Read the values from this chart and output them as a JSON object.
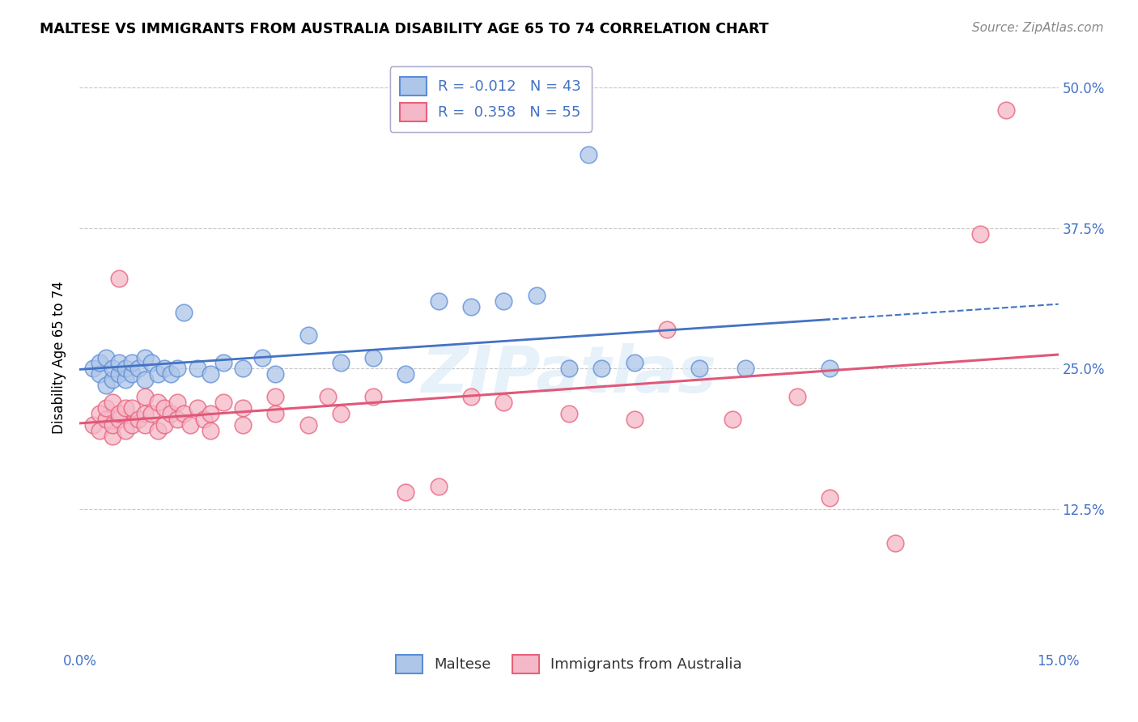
{
  "title": "MALTESE VS IMMIGRANTS FROM AUSTRALIA DISABILITY AGE 65 TO 74 CORRELATION CHART",
  "source": "Source: ZipAtlas.com",
  "ylabel": "Disability Age 65 to 74",
  "xlim": [
    0.0,
    15.0
  ],
  "ylim": [
    0.0,
    52.0
  ],
  "ytick_vals": [
    12.5,
    25.0,
    37.5,
    50.0
  ],
  "ytick_labels": [
    "12.5%",
    "25.0%",
    "37.5%",
    "50.0%"
  ],
  "xtick_vals": [
    0.0,
    5.0,
    10.0,
    15.0
  ],
  "xtick_labels": [
    "0.0%",
    "",
    "",
    "15.0%"
  ],
  "maltese_R": "-0.012",
  "maltese_N": "43",
  "australia_R": "0.358",
  "australia_N": "55",
  "blue_fill": "#aec6e8",
  "blue_edge": "#5b8dd9",
  "pink_fill": "#f5b8c8",
  "pink_edge": "#e8607a",
  "blue_line": "#4472c4",
  "pink_line": "#e05878",
  "legend_blue": "Maltese",
  "legend_pink": "Immigrants from Australia",
  "watermark": "ZIPatlas",
  "maltese_x": [
    0.2,
    0.3,
    0.3,
    0.4,
    0.4,
    0.5,
    0.5,
    0.6,
    0.6,
    0.7,
    0.7,
    0.8,
    0.8,
    0.9,
    1.0,
    1.0,
    1.1,
    1.2,
    1.3,
    1.4,
    1.5,
    1.6,
    1.8,
    2.0,
    2.2,
    2.5,
    2.8,
    3.0,
    3.5,
    4.0,
    4.5,
    5.0,
    5.5,
    6.0,
    6.5,
    7.0,
    7.5,
    7.8,
    8.0,
    8.5,
    9.5,
    10.2,
    11.5
  ],
  "maltese_y": [
    25.0,
    24.5,
    25.5,
    23.5,
    26.0,
    24.0,
    25.0,
    24.5,
    25.5,
    24.0,
    25.0,
    24.5,
    25.5,
    25.0,
    24.0,
    26.0,
    25.5,
    24.5,
    25.0,
    24.5,
    25.0,
    30.0,
    25.0,
    24.5,
    25.5,
    25.0,
    26.0,
    24.5,
    28.0,
    25.5,
    26.0,
    24.5,
    31.0,
    30.5,
    31.0,
    31.5,
    25.0,
    44.0,
    25.0,
    25.5,
    25.0,
    25.0,
    25.0
  ],
  "australia_x": [
    0.2,
    0.3,
    0.3,
    0.4,
    0.4,
    0.5,
    0.5,
    0.5,
    0.6,
    0.6,
    0.7,
    0.7,
    0.8,
    0.8,
    0.9,
    1.0,
    1.0,
    1.0,
    1.1,
    1.2,
    1.2,
    1.3,
    1.3,
    1.4,
    1.5,
    1.5,
    1.6,
    1.7,
    1.8,
    1.9,
    2.0,
    2.0,
    2.2,
    2.5,
    2.5,
    3.0,
    3.0,
    3.5,
    3.8,
    4.0,
    4.5,
    5.5,
    6.5,
    8.5,
    9.0,
    10.0,
    11.0,
    11.5,
    12.5,
    13.8,
    14.2,
    5.0,
    6.0,
    7.5,
    0.6
  ],
  "australia_y": [
    20.0,
    21.0,
    19.5,
    20.5,
    21.5,
    19.0,
    20.0,
    22.0,
    20.5,
    21.0,
    19.5,
    21.5,
    20.0,
    21.5,
    20.5,
    21.0,
    20.0,
    22.5,
    21.0,
    19.5,
    22.0,
    21.5,
    20.0,
    21.0,
    20.5,
    22.0,
    21.0,
    20.0,
    21.5,
    20.5,
    21.0,
    19.5,
    22.0,
    21.5,
    20.0,
    22.5,
    21.0,
    20.0,
    22.5,
    21.0,
    22.5,
    14.5,
    22.0,
    20.5,
    28.5,
    20.5,
    22.5,
    13.5,
    9.5,
    37.0,
    48.0,
    14.0,
    22.5,
    21.0,
    33.0
  ]
}
